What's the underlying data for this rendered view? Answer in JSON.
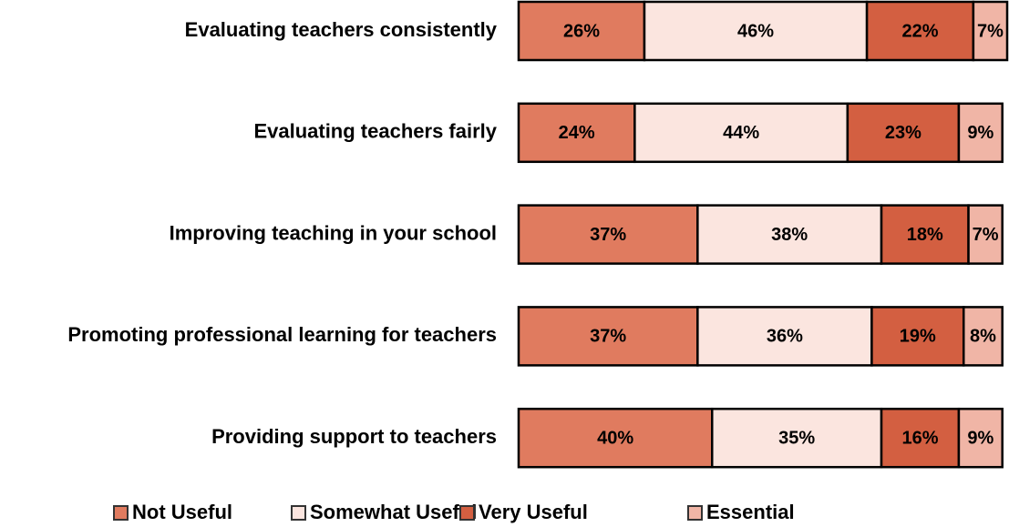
{
  "chart_data": {
    "type": "bar",
    "orientation": "horizontal",
    "stacked": true,
    "categories": [
      "Evaluating teachers consistently",
      "Evaluating teachers fairly",
      "Improving teaching in your school",
      "Promoting professional learning for teachers",
      "Providing support to teachers"
    ],
    "series": [
      {
        "name": "Not Useful",
        "color": "#e07b5f",
        "values": [
          26,
          24,
          37,
          37,
          40
        ],
        "value_labels": [
          "26%",
          "24%",
          "37%",
          "37%",
          "40%"
        ]
      },
      {
        "name": "Somewhat Useful",
        "color": "#fbe5df",
        "values": [
          46,
          44,
          38,
          36,
          35
        ],
        "value_labels": [
          "46%",
          "44%",
          "38%",
          "36%",
          "35%"
        ]
      },
      {
        "name": "Very Useful",
        "color": "#d35f41",
        "values": [
          22,
          23,
          18,
          19,
          16
        ],
        "value_labels": [
          "22%",
          "23%",
          "18%",
          "19%",
          "16%"
        ]
      },
      {
        "name": "Essential",
        "color": "#f0b5a6",
        "values": [
          7,
          9,
          7,
          8,
          9
        ],
        "value_labels": [
          "7%",
          "9%",
          "7%",
          "8%",
          "9%"
        ]
      }
    ],
    "xlim": [
      0,
      101
    ]
  }
}
